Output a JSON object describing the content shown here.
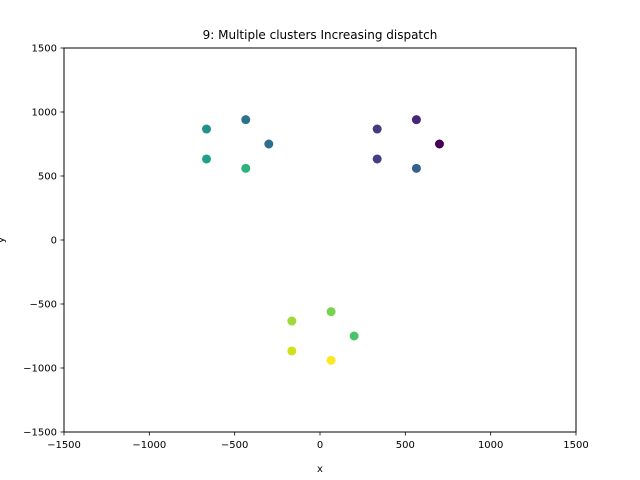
{
  "chart_data": {
    "type": "scatter",
    "title": "9: Multiple clusters Increasing dispatch",
    "xlabel": "x",
    "ylabel": "y",
    "xlim": [
      -1500,
      1500
    ],
    "ylim": [
      -1500,
      1500
    ],
    "xticks": [
      -1500,
      -1000,
      -500,
      0,
      500,
      1000,
      1500
    ],
    "yticks": [
      -1500,
      -1000,
      -500,
      0,
      500,
      1000,
      1500
    ],
    "xtick_labels": [
      "−1500",
      "−1000",
      "−500",
      "0",
      "500",
      "1000",
      "1500"
    ],
    "ytick_labels": [
      "−1500",
      "−1000",
      "−500",
      "0",
      "500",
      "1000",
      "1500"
    ],
    "grid": false,
    "colormap": "viridis",
    "points": [
      {
        "x": 700,
        "y": 750,
        "color": "#440154"
      },
      {
        "x": 565,
        "y": 940,
        "color": "#46257a"
      },
      {
        "x": 335,
        "y": 867,
        "color": "#47387f"
      },
      {
        "x": 335,
        "y": 633,
        "color": "#433e85"
      },
      {
        "x": 565,
        "y": 560,
        "color": "#355f8d"
      },
      {
        "x": -300,
        "y": 750,
        "color": "#2f6c8e"
      },
      {
        "x": -435,
        "y": 940,
        "color": "#2c718e"
      },
      {
        "x": -665,
        "y": 867,
        "color": "#21918c"
      },
      {
        "x": -665,
        "y": 633,
        "color": "#1fa088"
      },
      {
        "x": -435,
        "y": 560,
        "color": "#2db27d"
      },
      {
        "x": 200,
        "y": -750,
        "color": "#4ac16d"
      },
      {
        "x": 65,
        "y": -560,
        "color": "#7ad151"
      },
      {
        "x": -165,
        "y": -633,
        "color": "#a0da39"
      },
      {
        "x": -165,
        "y": -867,
        "color": "#d0e11c"
      },
      {
        "x": 65,
        "y": -940,
        "color": "#fde725"
      }
    ]
  }
}
